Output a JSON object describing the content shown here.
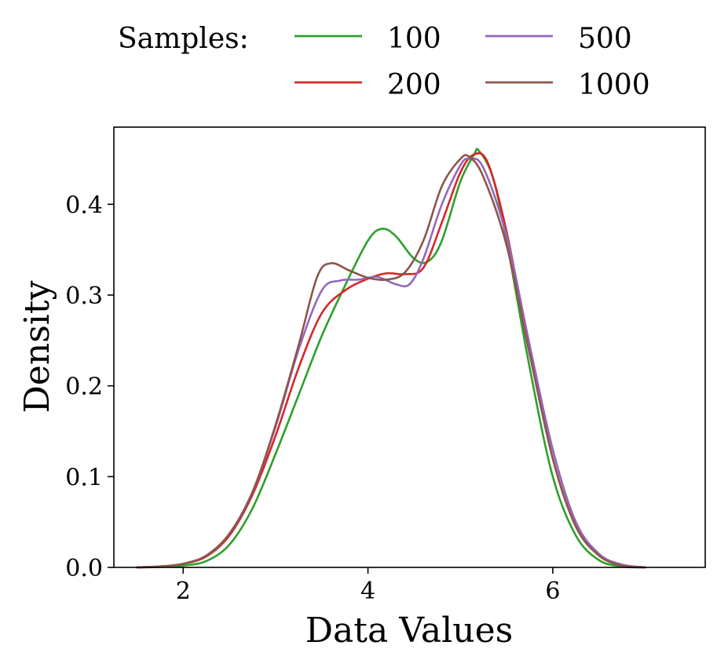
{
  "chart_data": {
    "type": "line",
    "title": "",
    "xlabel": "Data Values",
    "ylabel": "Density",
    "xlim": [
      1.25,
      7.65
    ],
    "ylim": [
      0.0,
      0.485
    ],
    "xticks": [
      2,
      4,
      6
    ],
    "xtick_labels": [
      "2",
      "4",
      "6"
    ],
    "yticks": [
      0.0,
      0.1,
      0.2,
      0.3,
      0.4
    ],
    "ytick_labels": [
      "0.0",
      "0.1",
      "0.2",
      "0.3",
      "0.4"
    ],
    "grid": false,
    "legend": {
      "title": "Samples:",
      "placement": "top",
      "columns": 2
    },
    "series": [
      {
        "name": "100",
        "color": "#2ca02c",
        "points": [
          [
            1.5,
            0.0
          ],
          [
            1.75,
            0.0005
          ],
          [
            2.0,
            0.002
          ],
          [
            2.25,
            0.007
          ],
          [
            2.5,
            0.025
          ],
          [
            2.75,
            0.065
          ],
          [
            3.0,
            0.125
          ],
          [
            3.25,
            0.19
          ],
          [
            3.5,
            0.255
          ],
          [
            3.75,
            0.31
          ],
          [
            4.0,
            0.36
          ],
          [
            4.15,
            0.373
          ],
          [
            4.3,
            0.365
          ],
          [
            4.5,
            0.34
          ],
          [
            4.65,
            0.337
          ],
          [
            4.8,
            0.36
          ],
          [
            5.0,
            0.425
          ],
          [
            5.15,
            0.455
          ],
          [
            5.2,
            0.459
          ],
          [
            5.35,
            0.43
          ],
          [
            5.5,
            0.36
          ],
          [
            5.75,
            0.22
          ],
          [
            6.0,
            0.1
          ],
          [
            6.25,
            0.035
          ],
          [
            6.5,
            0.008
          ],
          [
            6.75,
            0.001
          ],
          [
            7.0,
            0.0
          ]
        ]
      },
      {
        "name": "200",
        "color": "#d62728",
        "points": [
          [
            1.5,
            0.0
          ],
          [
            1.75,
            0.001
          ],
          [
            2.0,
            0.004
          ],
          [
            2.25,
            0.012
          ],
          [
            2.5,
            0.035
          ],
          [
            2.75,
            0.08
          ],
          [
            3.0,
            0.145
          ],
          [
            3.25,
            0.22
          ],
          [
            3.5,
            0.28
          ],
          [
            3.75,
            0.305
          ],
          [
            4.0,
            0.318
          ],
          [
            4.2,
            0.324
          ],
          [
            4.4,
            0.323
          ],
          [
            4.6,
            0.33
          ],
          [
            4.8,
            0.38
          ],
          [
            5.0,
            0.435
          ],
          [
            5.15,
            0.455
          ],
          [
            5.3,
            0.445
          ],
          [
            5.5,
            0.37
          ],
          [
            5.75,
            0.24
          ],
          [
            6.0,
            0.12
          ],
          [
            6.25,
            0.045
          ],
          [
            6.5,
            0.014
          ],
          [
            6.75,
            0.003
          ],
          [
            7.0,
            0.0
          ]
        ]
      },
      {
        "name": "500",
        "color": "#9467bd",
        "points": [
          [
            1.5,
            0.0
          ],
          [
            1.75,
            0.001
          ],
          [
            2.0,
            0.004
          ],
          [
            2.25,
            0.013
          ],
          [
            2.5,
            0.037
          ],
          [
            2.75,
            0.083
          ],
          [
            3.0,
            0.155
          ],
          [
            3.25,
            0.24
          ],
          [
            3.5,
            0.305
          ],
          [
            3.7,
            0.316
          ],
          [
            3.9,
            0.317
          ],
          [
            4.1,
            0.32
          ],
          [
            4.3,
            0.312
          ],
          [
            4.45,
            0.312
          ],
          [
            4.6,
            0.34
          ],
          [
            4.8,
            0.4
          ],
          [
            5.0,
            0.443
          ],
          [
            5.1,
            0.45
          ],
          [
            5.25,
            0.44
          ],
          [
            5.5,
            0.365
          ],
          [
            5.75,
            0.245
          ],
          [
            6.0,
            0.13
          ],
          [
            6.25,
            0.05
          ],
          [
            6.5,
            0.015
          ],
          [
            6.75,
            0.003
          ],
          [
            7.0,
            0.0
          ]
        ]
      },
      {
        "name": "1000",
        "color": "#8c564b",
        "points": [
          [
            1.5,
            0.0
          ],
          [
            1.75,
            0.001
          ],
          [
            2.0,
            0.004
          ],
          [
            2.25,
            0.013
          ],
          [
            2.5,
            0.037
          ],
          [
            2.75,
            0.083
          ],
          [
            3.0,
            0.157
          ],
          [
            3.25,
            0.245
          ],
          [
            3.45,
            0.32
          ],
          [
            3.6,
            0.335
          ],
          [
            3.8,
            0.327
          ],
          [
            4.0,
            0.319
          ],
          [
            4.2,
            0.317
          ],
          [
            4.4,
            0.325
          ],
          [
            4.6,
            0.36
          ],
          [
            4.8,
            0.42
          ],
          [
            5.0,
            0.45
          ],
          [
            5.1,
            0.452
          ],
          [
            5.25,
            0.43
          ],
          [
            5.5,
            0.355
          ],
          [
            5.75,
            0.235
          ],
          [
            6.0,
            0.12
          ],
          [
            6.25,
            0.045
          ],
          [
            6.5,
            0.013
          ],
          [
            6.75,
            0.002
          ],
          [
            7.0,
            0.0
          ]
        ]
      }
    ]
  }
}
